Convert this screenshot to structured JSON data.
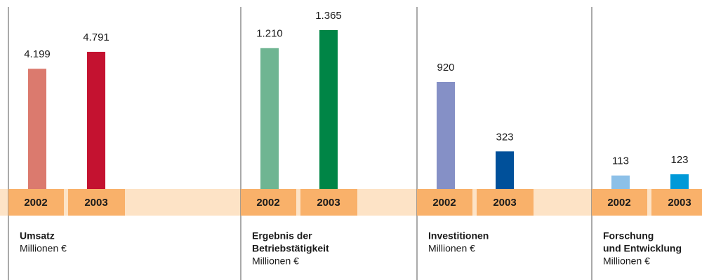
{
  "chart_data": [
    {
      "type": "bar",
      "title": [
        "Umsatz"
      ],
      "subtitle": "Millionen €",
      "categories": [
        "2002",
        "2003"
      ],
      "values": [
        4199,
        4791
      ],
      "value_labels": [
        "4.199",
        "4.791"
      ],
      "colors": [
        "#db7a6e",
        "#c41230"
      ]
    },
    {
      "type": "bar",
      "title": [
        "Ergebnis der",
        "Betriebstätigkeit"
      ],
      "subtitle": "Millionen €",
      "categories": [
        "2002",
        "2003"
      ],
      "values": [
        1210,
        1365
      ],
      "value_labels": [
        "1.210",
        "1.365"
      ],
      "colors": [
        "#6fb592",
        "#008546"
      ]
    },
    {
      "type": "bar",
      "title": [
        "Investitionen"
      ],
      "subtitle": "Millionen €",
      "categories": [
        "2002",
        "2003"
      ],
      "values": [
        920,
        323
      ],
      "value_labels": [
        "920",
        "323"
      ],
      "colors": [
        "#8590c6",
        "#00509a"
      ]
    },
    {
      "type": "bar",
      "title": [
        "Forschung",
        "und Entwicklung"
      ],
      "subtitle": "Millionen €",
      "categories": [
        "2002",
        "2003"
      ],
      "values": [
        113,
        123
      ],
      "value_labels": [
        "113",
        "123"
      ],
      "colors": [
        "#8cc0e8",
        "#0099d8"
      ]
    }
  ]
}
